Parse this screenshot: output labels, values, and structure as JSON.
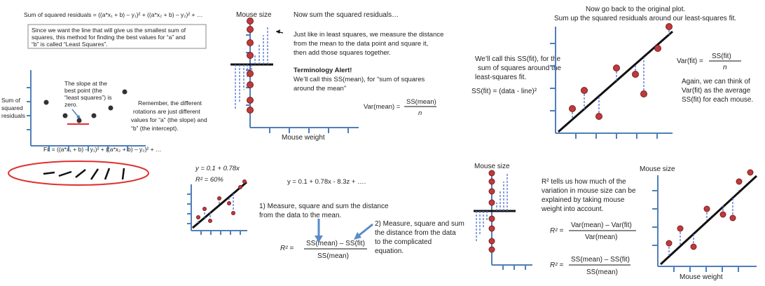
{
  "panel1": {
    "formula_top": "Sum of squared residuals = ((a*x₁ + b) – y₁)² + ((a*x₂ + b) – y₂)² + …",
    "box_lines": [
      "Since we want the line that will give us the smallest sum of",
      "squares, this method for finding the best values for “a” and",
      "“b” is called “Least Squares”."
    ],
    "slope_note": [
      "The slope at the",
      "best point (the",
      "“least squares”) is",
      "zero."
    ],
    "ylabel": [
      "Sum of",
      "squared",
      "residuals"
    ],
    "remember": [
      "Remember, the different",
      "rotations are just different",
      "values for “a” (the slope) and",
      "“b” (the intercept)."
    ],
    "fit_formula": "Fit = ((a*x₁ + b) – y₁)² + ((a*x₂ + b) – y₂)² + …"
  },
  "panel2": {
    "ylabel": "Mouse size",
    "xlabel": "Mouse weight",
    "heading": "Now sum the squared residuals…",
    "body": [
      "Just like in least squares, we measure the distance",
      "from the mean to the data point and square it,",
      "then add those squares together."
    ],
    "alert_title": "Terminology Alert!",
    "alert_lines": [
      "We’ll call this SS(mean), for “sum of squares",
      "around the mean”"
    ],
    "var_left": "Var(mean) =",
    "var_num": "SS(mean)",
    "var_den": "n"
  },
  "panel3": {
    "title": [
      "Now go back to the original plot.",
      "Sum up the squared residuals around our least-squares fit."
    ],
    "call_lines": [
      "We’ll call this SS(fit), for the",
      "sum of squares around the",
      "least-squares fit."
    ],
    "ss_fit": "SS(fit) = (data - line)²",
    "var_left": "Var(fit) =",
    "var_num": "SS(fit)",
    "var_den": "n",
    "again": [
      "Again, we can think of",
      "Var(fit) as the average",
      "SS(fit) for each mouse."
    ]
  },
  "panel4": {
    "eq1": "y = 0.1 + 0.78x",
    "r2": "R² = 60%",
    "eq2": "y = 0.1 + 0.78x - 8.3z + ….",
    "step1": [
      "1) Measure, square and sum the distance",
      "from the data to the mean."
    ],
    "step2": [
      "2) Measure, square and sum",
      "the distance from the data",
      "to the complicated",
      "equation."
    ],
    "r2_left": "R² =",
    "r2_num": "SS(mean) – SS(fit)",
    "r2_den": "SS(mean)"
  },
  "panel5": {
    "ylabel_left": "Mouse size",
    "ylabel_right": "Mouse size",
    "xlabel_right": "Mouse weight",
    "tells": [
      "R² tells us how much of the",
      "variation in mouse size can be",
      "explained by taking mouse",
      "weight into account."
    ],
    "r2_left": "R² =",
    "frac1_num": "Var(mean) – Var(fit)",
    "frac1_den": "Var(mean)",
    "frac2_num": "SS(mean) – SS(fit)",
    "frac2_den": "SS(mean)"
  },
  "colors": {
    "axis": "#4f7fb8",
    "point": "#c0393b",
    "residual": "#4a6fd0",
    "highlight": "#e03030"
  }
}
